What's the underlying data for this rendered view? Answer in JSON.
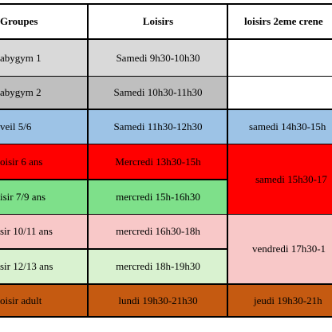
{
  "headers": {
    "groupes": "Groupes",
    "loisirs": "Loisirs",
    "loisirs2": "loisirs 2eme crene"
  },
  "rows": [
    {
      "group": "abygym 1",
      "loisirs": "Samedi 9h30-10h30",
      "loisirs2": ""
    },
    {
      "group": "abygym 2",
      "loisirs": "Samedi 10h30-11h30",
      "loisirs2": ""
    },
    {
      "group": "veil 5/6",
      "loisirs": "Samedi 11h30-12h30",
      "loisirs2": "samedi 14h30-15h"
    },
    {
      "group": "oisir 6 ans",
      "loisirs": "Mercredi  13h30-15h"
    },
    {
      "group": "isir 7/9 ans",
      "loisirs": "mercredi 15h-16h30"
    },
    {
      "group": "sir 10/11 ans",
      "loisirs": "mercredi 16h30-18h"
    },
    {
      "group": "sir 12/13 ans",
      "loisirs": "mercredi 18h-19h30"
    },
    {
      "group": "oisir adult",
      "loisirs": "lundi 19h30-21h30",
      "loisirs2": "jeudi 19h30-21h"
    }
  ],
  "merged": {
    "loisirs2_rows_4_5": "samedi 15h30-17",
    "loisirs2_rows_6_7": "vendredi 17h30-1"
  },
  "colors": {
    "gray_light": "#d9d9d9",
    "gray_dark": "#bfbfbf",
    "blue": "#9dc3e6",
    "red": "#ff0000",
    "green": "#7ee08a",
    "pink": "#f8c8c8",
    "green_light": "#d9f2d0",
    "brown": "#c55a11"
  }
}
